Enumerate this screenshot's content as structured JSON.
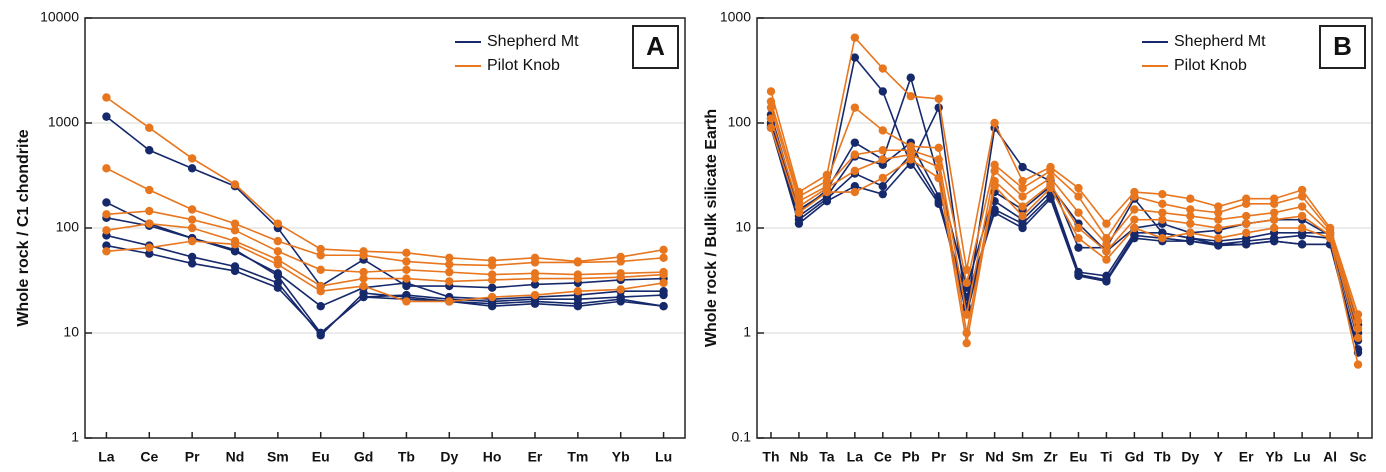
{
  "chart_data": [
    {
      "type": "line",
      "panel_label": "A",
      "ylabel": "Whole rock / C1 chondrite",
      "log_scale": true,
      "grid": true,
      "legend": "upper right",
      "categories": [
        "La",
        "Ce",
        "Pr",
        "Nd",
        "Sm",
        "Eu",
        "Gd",
        "Tb",
        "Dy",
        "Ho",
        "Er",
        "Tm",
        "Yb",
        "Lu"
      ],
      "ylim": [
        1,
        10000
      ],
      "yticks": [
        1,
        10,
        100,
        1000,
        10000
      ],
      "series": [
        {
          "name": "Shepherd Mt",
          "color": "#16296b",
          "values": [
            [
              1150,
              550,
              370,
              250,
              100,
              28,
              50,
              28,
              28,
              27,
              29,
              30,
              32,
              33
            ],
            [
              175,
              110,
              80,
              60,
              37,
              18,
              27,
              30,
              22,
              21,
              22,
              23,
              25,
              25
            ],
            [
              125,
              105,
              80,
              62,
              35,
              10,
              22,
              23,
              21,
              20,
              21,
              21,
              22,
              23
            ],
            [
              85,
              68,
              53,
              43,
              30,
              9.5,
              24,
              22,
              20,
              19,
              20,
              19,
              21,
              18
            ],
            [
              68,
              57,
              46,
              39,
              27,
              10,
              22,
              21,
              20,
              18,
              19,
              18,
              20,
              18
            ]
          ]
        },
        {
          "name": "Pilot Knob",
          "color": "#e8761e",
          "values": [
            [
              1750,
              900,
              460,
              260,
              110,
              63,
              60,
              58,
              52,
              49,
              52,
              48,
              53,
              62
            ],
            [
              370,
              230,
              150,
              110,
              75,
              55,
              55,
              48,
              45,
              44,
              47,
              47,
              48,
              52
            ],
            [
              135,
              145,
              120,
              95,
              60,
              40,
              38,
              40,
              38,
              36,
              37,
              36,
              37,
              38
            ],
            [
              95,
              110,
              100,
              75,
              50,
              28,
              33,
              33,
              31,
              32,
              33,
              33,
              34,
              36
            ],
            [
              60,
              65,
              75,
              70,
              45,
              25,
              28,
              20,
              20,
              22,
              23,
              25,
              26,
              30
            ]
          ]
        }
      ]
    },
    {
      "type": "line",
      "panel_label": "B",
      "ylabel": "Whole rock / Bulk silicate Earth",
      "log_scale": true,
      "grid": true,
      "legend": "upper right",
      "categories": [
        "Th",
        "Nb",
        "Ta",
        "La",
        "Ce",
        "Pb",
        "Pr",
        "Sr",
        "Nd",
        "Sm",
        "Zr",
        "Eu",
        "Ti",
        "Gd",
        "Tb",
        "Dy",
        "Y",
        "Er",
        "Yb",
        "Lu",
        "Al",
        "Sc"
      ],
      "ylim": [
        0.1,
        1000
      ],
      "yticks": [
        0.1,
        1,
        10,
        100,
        1000
      ],
      "series": [
        {
          "name": "Shepherd Mt",
          "color": "#16296b",
          "values": [
            [
              120,
              15,
              22,
              420,
              200,
              40,
              140,
              1.7,
              90,
              38,
              28,
              6.5,
              6.5,
              19,
              9,
              8,
              7.5,
              8,
              9,
              9,
              9,
              1.2
            ],
            [
              110,
              14,
              23,
              65,
              45,
              270,
              30,
              2.7,
              22,
              15,
              25,
              11,
              6,
              10,
              11,
              9,
              9.5,
              11,
              12,
              12,
              8.5,
              1.0
            ],
            [
              100,
              13,
              20,
              48,
              40,
              65,
              20,
              1.5,
              18,
              12,
              22,
              3.8,
              3.5,
              9,
              9,
              8,
              7,
              7.5,
              8,
              8.5,
              8,
              0.85
            ],
            [
              95,
              12,
              19,
              33,
              25,
              50,
              18,
              1.8,
              15,
              11,
              20,
              3.6,
              3.2,
              8.5,
              8,
              7.5,
              7,
              7,
              7.5,
              7,
              7,
              0.7
            ],
            [
              90,
              11,
              18,
              25,
              21,
              42,
              17,
              2.2,
              14,
              10,
              19,
              3.5,
              3.1,
              8,
              7.5,
              7.5,
              6.8,
              7,
              7.5,
              7,
              7,
              0.65
            ]
          ]
        },
        {
          "name": "Pilot Knob",
          "color": "#e8761e",
          "values": [
            [
              200,
              22,
              32,
              650,
              330,
              180,
              170,
              4,
              100,
              28,
              38,
              24,
              11,
              22,
              21,
              19,
              16,
              19,
              19,
              23,
              10,
              1.5
            ],
            [
              160,
              20,
              28,
              140,
              85,
              60,
              58,
              3,
              40,
              24,
              35,
              20,
              8,
              20,
              17,
              15,
              14,
              17,
              17,
              20,
              9.5,
              1.3
            ],
            [
              140,
              18,
              25,
              50,
              55,
              55,
              45,
              1.5,
              35,
              20,
              30,
              14,
              7,
              15,
              14,
              13,
              12,
              13,
              14,
              16,
              9,
              1.1
            ],
            [
              110,
              16,
              24,
              35,
              45,
              50,
              38,
              1.0,
              28,
              16,
              26,
              10,
              6,
              12,
              12,
              11,
              10,
              11,
              12,
              13,
              8.5,
              0.9
            ],
            [
              90,
              14,
              22,
              22,
              30,
              45,
              30,
              0.8,
              25,
              13,
              24,
              8,
              5,
              10,
              8,
              9,
              8,
              9,
              10,
              10,
              8,
              0.5
            ]
          ]
        }
      ]
    }
  ]
}
